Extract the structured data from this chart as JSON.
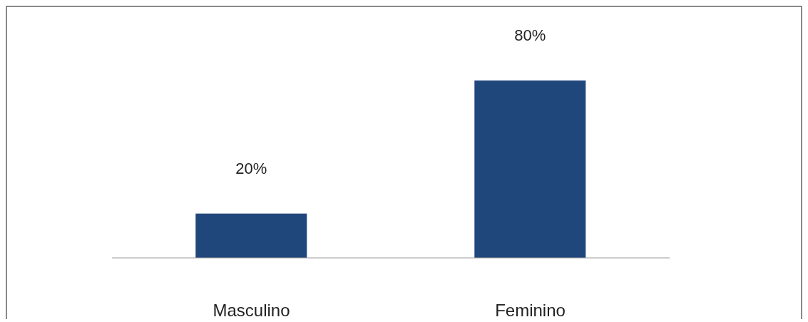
{
  "chart_data": {
    "type": "bar",
    "categories": [
      "Masculino",
      "Feminino"
    ],
    "values": [
      20,
      80
    ],
    "value_labels": [
      "20%",
      "80%"
    ],
    "color": "#20477c"
  }
}
